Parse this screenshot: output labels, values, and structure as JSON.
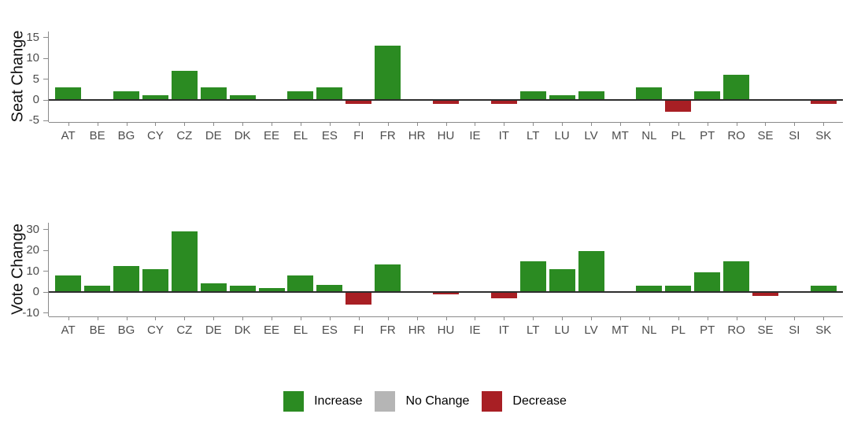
{
  "colors": {
    "increase": "#2b8b22",
    "no_change": "#b5b5b5",
    "decrease": "#a81f24",
    "axis_line": "#8a8a8a",
    "zero_line": "#2d2d2d",
    "tick_label": "#4d4d4d",
    "axis_title": "#111111",
    "background": "#ffffff"
  },
  "legend": {
    "items": [
      {
        "key": "increase",
        "label": "Increase",
        "color": "#2b8b22"
      },
      {
        "key": "no_change",
        "label": "No Change",
        "color": "#b5b5b5"
      },
      {
        "key": "decrease",
        "label": "Decrease",
        "color": "#a81f24"
      }
    ]
  },
  "chart_data": [
    {
      "type": "bar",
      "title": "",
      "ylabel": "Seat Change",
      "xlabel": "",
      "categories": [
        "AT",
        "BE",
        "BG",
        "CY",
        "CZ",
        "DE",
        "DK",
        "EE",
        "EL",
        "ES",
        "FI",
        "FR",
        "HR",
        "HU",
        "IE",
        "IT",
        "LT",
        "LU",
        "LV",
        "MT",
        "NL",
        "PL",
        "PT",
        "RO",
        "SE",
        "SI",
        "SK"
      ],
      "values": [
        3,
        0,
        2,
        1,
        7,
        3,
        1,
        0,
        2,
        3,
        -1,
        13,
        0,
        -1,
        0,
        -1,
        2,
        1,
        2,
        0,
        3,
        -3,
        2,
        6,
        0,
        0,
        -1
      ],
      "ylim": [
        -5.4,
        16.4
      ],
      "yticks": [
        15,
        10,
        5,
        0,
        -5
      ],
      "grid": "off",
      "color_rule": "increase if value > 0, decrease if value < 0, no bar drawn if value = 0",
      "legend_position": "bottom shared"
    },
    {
      "type": "bar",
      "title": "",
      "ylabel": "Vote Change",
      "xlabel": "",
      "categories": [
        "AT",
        "BE",
        "BG",
        "CY",
        "CZ",
        "DE",
        "DK",
        "EE",
        "EL",
        "ES",
        "FI",
        "FR",
        "HR",
        "HU",
        "IE",
        "IT",
        "LT",
        "LU",
        "LV",
        "MT",
        "NL",
        "PL",
        "PT",
        "RO",
        "SE",
        "SI",
        "SK"
      ],
      "values": [
        8,
        3,
        12.5,
        11,
        29,
        4,
        3,
        2,
        8,
        3.5,
        -6,
        13,
        0,
        -1,
        0,
        -3,
        14.5,
        11,
        19.5,
        0,
        3,
        3,
        9.5,
        14.5,
        -2,
        0,
        3
      ],
      "ylim": [
        -11.7,
        33.1
      ],
      "yticks": [
        30,
        20,
        10,
        0,
        -10
      ],
      "grid": "off",
      "color_rule": "increase if value > 0, decrease if value < 0, no bar drawn if value = 0",
      "legend_position": "bottom shared"
    }
  ]
}
